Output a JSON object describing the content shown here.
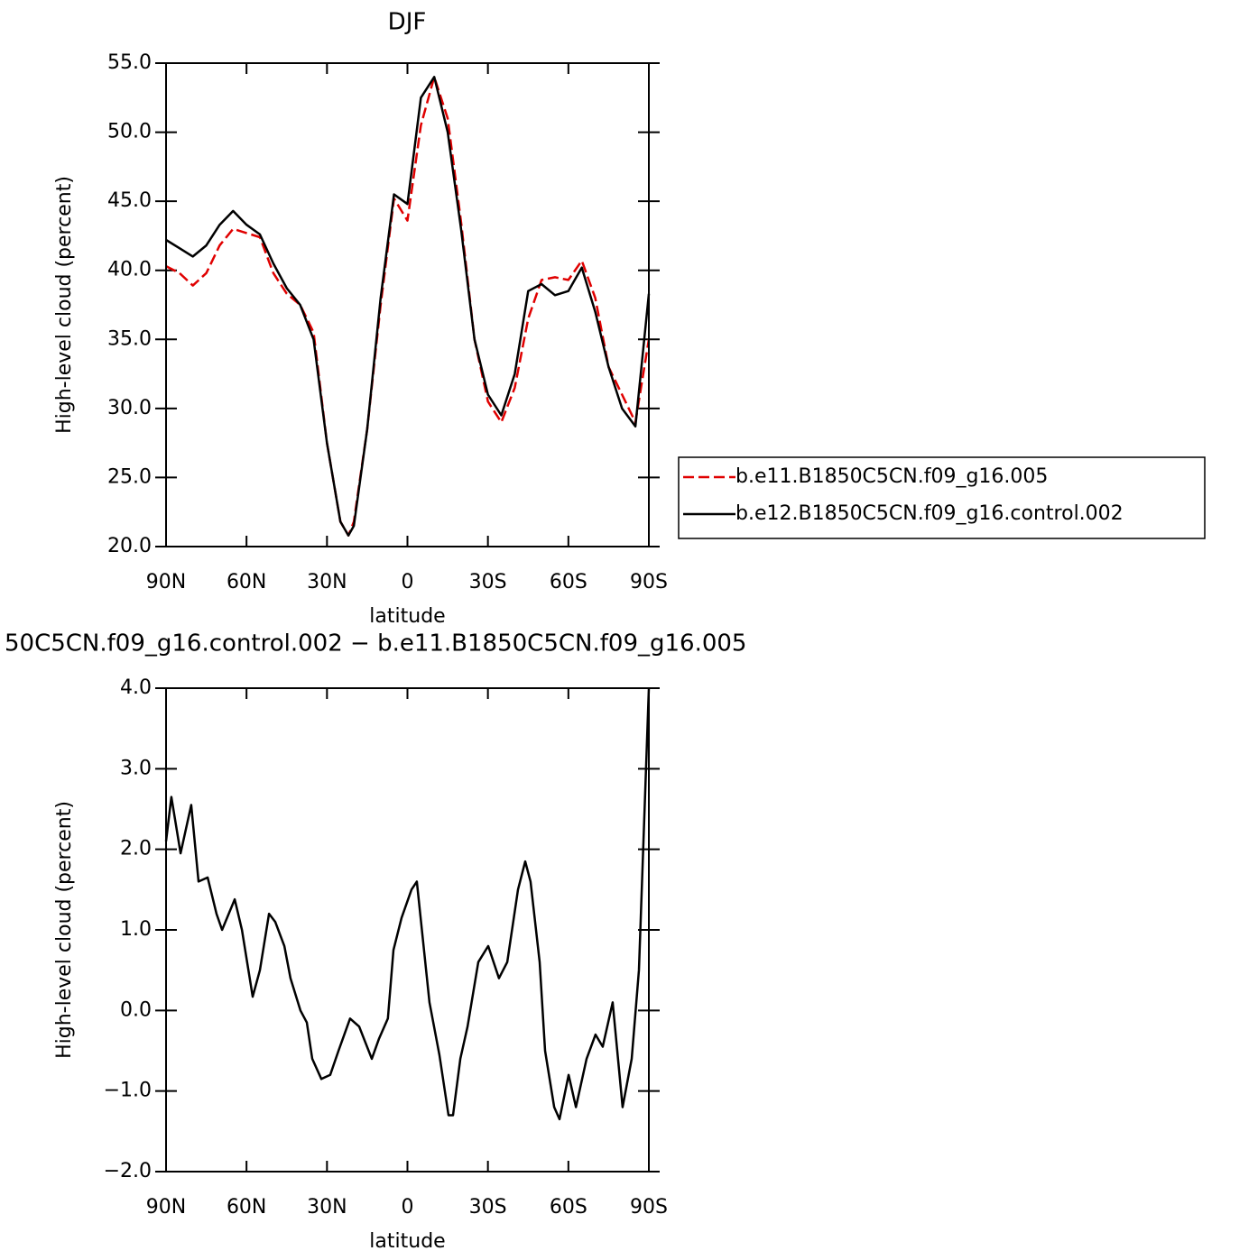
{
  "chart_data": [
    {
      "type": "line",
      "title": "DJF",
      "xlabel": "latitude",
      "ylabel": "High-level cloud (percent)",
      "x": [
        90,
        85,
        80,
        75,
        70,
        65,
        60,
        55,
        50,
        45,
        40,
        35,
        30,
        25,
        22,
        20,
        15,
        10,
        5,
        0,
        -5,
        -10,
        -15,
        -20,
        -25,
        -30,
        -35,
        -40,
        -45,
        -50,
        -55,
        -60,
        -65,
        -70,
        -75,
        -80,
        -85,
        -90
      ],
      "series": [
        {
          "name": "b.e11.B1850C5CN.f09_g16.005",
          "color": "#e00000",
          "dash": true,
          "values": [
            40.3,
            39.8,
            38.9,
            39.8,
            41.8,
            43.0,
            42.7,
            42.4,
            39.8,
            38.3,
            37.5,
            35.5,
            27.5,
            21.8,
            20.8,
            21.8,
            28.5,
            37.5,
            45.2,
            43.6,
            50.5,
            54.0,
            51.0,
            43.5,
            35.0,
            30.5,
            29.0,
            31.5,
            36.5,
            39.3,
            39.5,
            39.3,
            40.7,
            38.0,
            33.0,
            31.0,
            29.0,
            35.0
          ]
        },
        {
          "name": "b.e12.B1850C5CN.f09_g16.control.002",
          "color": "#000000",
          "dash": false,
          "values": [
            42.2,
            41.6,
            41.0,
            41.8,
            43.3,
            44.3,
            43.3,
            42.6,
            40.5,
            38.7,
            37.5,
            35.0,
            27.5,
            21.8,
            20.8,
            21.5,
            28.5,
            38.0,
            45.5,
            44.8,
            52.5,
            54.0,
            50.0,
            43.0,
            35.0,
            31.0,
            29.5,
            32.5,
            38.5,
            39.0,
            38.2,
            38.5,
            40.2,
            37.0,
            33.0,
            30.0,
            28.7,
            38.3
          ]
        }
      ],
      "xlim": [
        90,
        -90
      ],
      "xticks": [
        {
          "value": 90,
          "label": "90N"
        },
        {
          "value": 60,
          "label": "60N"
        },
        {
          "value": 30,
          "label": "30N"
        },
        0,
        {
          "value": -30,
          "label": "30S"
        },
        {
          "value": -60,
          "label": "60S"
        },
        {
          "value": -90,
          "label": "90S"
        }
      ],
      "ylim": [
        20,
        55
      ],
      "yticks": [
        {
          "value": 20,
          "label": "20.0"
        },
        {
          "value": 25,
          "label": "25.0"
        },
        {
          "value": 30,
          "label": "30.0"
        },
        {
          "value": 35,
          "label": "35.0"
        },
        {
          "value": 40,
          "label": "40.0"
        },
        {
          "value": 45,
          "label": "45.0"
        },
        {
          "value": 50,
          "label": "50.0"
        },
        {
          "value": 55,
          "label": "55.0"
        }
      ],
      "legend": "right"
    },
    {
      "type": "line",
      "title": "50C5CN.f09_g16.control.002 − b.e11.B1850C5CN.f09_g16.005",
      "xlabel": "latitude",
      "ylabel": "High-level cloud (percent)",
      "x": [
        90,
        88.0,
        84.6,
        80.6,
        77.9,
        74.5,
        71.2,
        69.1,
        64.4,
        61.7,
        57.7,
        55.0,
        51.6,
        49.3,
        45.9,
        43.6,
        39.9,
        37.5,
        35.5,
        32.1,
        28.8,
        25.7,
        21.4,
        18.0,
        13.3,
        10.6,
        7.3,
        5.2,
        2.2,
        -1.5,
        -3.5,
        -8.2,
        -11.9,
        -15.3,
        -17.0,
        -19.7,
        -22.4,
        -26.4,
        -30.1,
        -34.1,
        -37.2,
        -41.2,
        -43.9,
        -45.9,
        -49.3,
        -51.3,
        -54.7,
        -56.7,
        -60.1,
        -62.8,
        -66.8,
        -70.1,
        -72.8,
        -76.5,
        -80.2,
        -83.6,
        -86.3,
        -90
      ],
      "series": [
        {
          "color": "#000000",
          "dash": false,
          "values": [
            2.1,
            2.65,
            1.95,
            2.55,
            1.6,
            1.65,
            1.2,
            1.0,
            1.38,
            1.0,
            0.17,
            0.5,
            1.2,
            1.1,
            0.8,
            0.4,
            0.0,
            -0.15,
            -0.6,
            -0.85,
            -0.8,
            -0.5,
            -0.1,
            -0.2,
            -0.6,
            -0.35,
            -0.1,
            0.75,
            1.15,
            1.5,
            1.6,
            0.1,
            -0.55,
            -1.3,
            -1.3,
            -0.6,
            -0.2,
            0.6,
            0.8,
            0.4,
            0.6,
            1.5,
            1.85,
            1.6,
            0.6,
            -0.5,
            -1.2,
            -1.35,
            -0.8,
            -1.2,
            -0.6,
            -0.3,
            -0.45,
            0.1,
            -1.2,
            -0.6,
            0.5,
            4.0
          ]
        }
      ],
      "xlim": [
        90,
        -90
      ],
      "xticks": [
        {
          "value": 90,
          "label": "90N"
        },
        {
          "value": 60,
          "label": "60N"
        },
        {
          "value": 30,
          "label": "30N"
        },
        0,
        {
          "value": -30,
          "label": "30S"
        },
        {
          "value": -60,
          "label": "60S"
        },
        {
          "value": -90,
          "label": "90S"
        }
      ],
      "ylim": [
        -2,
        4
      ],
      "yticks": [
        {
          "value": -2,
          "label": "−2.0"
        },
        {
          "value": -1,
          "label": "−1.0"
        },
        {
          "value": 0,
          "label": "0.0"
        },
        {
          "value": 1,
          "label": "1.0"
        },
        {
          "value": 2,
          "label": "2.0"
        },
        {
          "value": 3,
          "label": "3.0"
        },
        {
          "value": 4,
          "label": "4.0"
        }
      ]
    }
  ]
}
